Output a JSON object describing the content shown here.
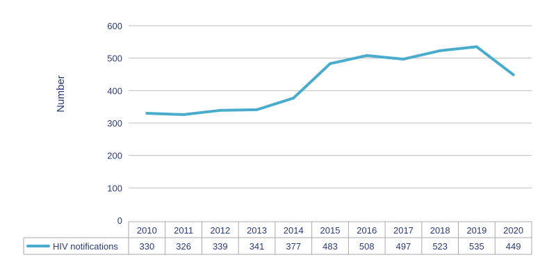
{
  "chart_data": {
    "type": "line",
    "categories": [
      "2010",
      "2011",
      "2012",
      "2013",
      "2014",
      "2015",
      "2016",
      "2017",
      "2018",
      "2019",
      "2020"
    ],
    "series": [
      {
        "name": "HIV notifications",
        "values": [
          330,
          326,
          339,
          341,
          377,
          483,
          508,
          497,
          523,
          535,
          449
        ],
        "color": "#4aaccc"
      }
    ],
    "ylabel": "Number",
    "ylim": [
      0,
      600
    ],
    "yticks": [
      0,
      100,
      200,
      300,
      400,
      500,
      600
    ],
    "grid": true,
    "legend": "data table below chart"
  },
  "colors": {
    "line": "#4aaccc",
    "text": "#2b3a78",
    "grid": "#bdbdbd",
    "table_border": "#a8a8a8"
  }
}
